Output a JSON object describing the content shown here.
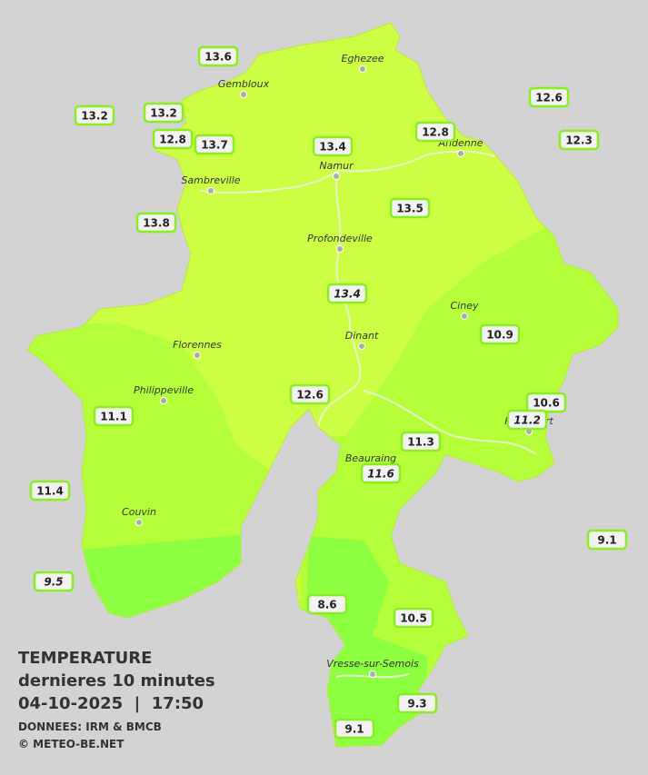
{
  "title": {
    "heading": "TEMPERATURE",
    "subtitle": "dernieres 10 minutes",
    "datetime": "04-10-2025  |  17:50",
    "source": "DONNEES: IRM & BMCB",
    "copyright": "© METEO-BE.NET"
  },
  "cities": [
    "Eghezee",
    "Gembloux",
    "Andenne",
    "Namur",
    "Sambreville",
    "Profondeville",
    "Ciney",
    "Dinant",
    "Florennes",
    "Philippeville",
    "Beauraing",
    "Rochefort",
    "Couvin",
    "Vresse-sur-Semois"
  ],
  "stations": [
    {
      "value": "13.6"
    },
    {
      "value": "13.2"
    },
    {
      "value": "13.2"
    },
    {
      "value": "12.8"
    },
    {
      "value": "13.7"
    },
    {
      "value": "13.4"
    },
    {
      "value": "12.8"
    },
    {
      "value": "12.6"
    },
    {
      "value": "12.3"
    },
    {
      "value": "13.8"
    },
    {
      "value": "13.5"
    },
    {
      "value": "13.4",
      "italic": true
    },
    {
      "value": "10.9"
    },
    {
      "value": "12.6"
    },
    {
      "value": "11.1"
    },
    {
      "value": "10.6"
    },
    {
      "value": "11.2",
      "italic": true
    },
    {
      "value": "11.3"
    },
    {
      "value": "11.6",
      "italic": true
    },
    {
      "value": "11.4"
    },
    {
      "value": "9.1"
    },
    {
      "value": "9.5",
      "italic": true
    },
    {
      "value": "8.6"
    },
    {
      "value": "10.5"
    },
    {
      "value": "9.3"
    },
    {
      "value": "9.1"
    }
  ]
}
